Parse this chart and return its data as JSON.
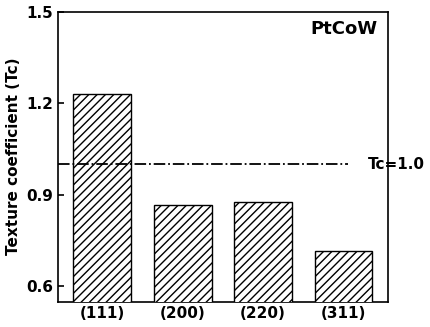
{
  "categories": [
    "(111)",
    "(200)",
    "(220)",
    "(311)"
  ],
  "values": [
    1.23,
    0.865,
    0.875,
    0.715
  ],
  "bar_color": "#ffffff",
  "bar_edgecolor": "#000000",
  "hatch": "////",
  "ylabel": "Texture coefficient (Tc)",
  "ylim": [
    0.55,
    1.5
  ],
  "yticks": [
    0.6,
    0.9,
    1.2,
    1.5
  ],
  "hline_y": 1.0,
  "hline_label": "Tc=1.0",
  "hline_style": "-.",
  "hline_color": "#000000",
  "label_ptcow": "PtCoW",
  "label_fontsize": 11,
  "tick_fontsize": 11,
  "bar_width": 0.72,
  "background_color": "#ffffff"
}
